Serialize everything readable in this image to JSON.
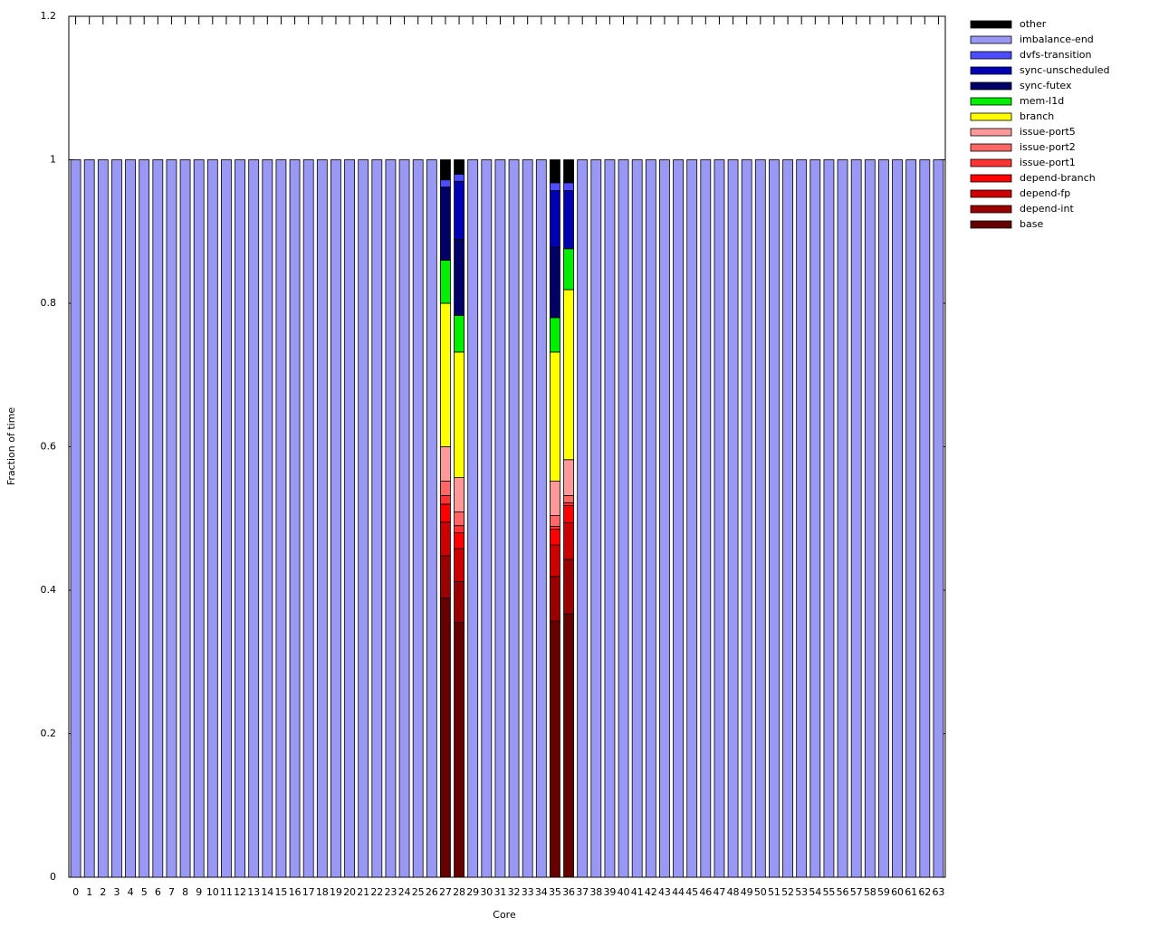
{
  "chart_data": {
    "type": "stacked-bar",
    "x_label": "Core",
    "y_label": "Fraction of time",
    "categories": [
      "0",
      "1",
      "2",
      "3",
      "4",
      "5",
      "6",
      "7",
      "8",
      "9",
      "10",
      "11",
      "12",
      "13",
      "14",
      "15",
      "16",
      "17",
      "18",
      "19",
      "20",
      "21",
      "22",
      "23",
      "24",
      "25",
      "26",
      "27",
      "28",
      "29",
      "30",
      "31",
      "32",
      "33",
      "34",
      "35",
      "36",
      "37",
      "38",
      "39",
      "40",
      "41",
      "42",
      "43",
      "44",
      "45",
      "46",
      "47",
      "48",
      "49",
      "50",
      "51",
      "52",
      "53",
      "54",
      "55",
      "56",
      "57",
      "58",
      "59",
      "60",
      "61",
      "62",
      "63"
    ],
    "ylim": [
      0,
      1.2
    ],
    "yticks": [
      0,
      0.2,
      0.4,
      0.6,
      0.8,
      1,
      1.2
    ],
    "legend": "outside-right",
    "series": [
      {
        "name": "base",
        "color": "#660000",
        "values": [
          0,
          0,
          0,
          0,
          0,
          0,
          0,
          0,
          0,
          0,
          0,
          0,
          0,
          0,
          0,
          0,
          0,
          0,
          0,
          0,
          0,
          0,
          0,
          0,
          0,
          0,
          0,
          0.389,
          0.355,
          0,
          0,
          0,
          0,
          0,
          0,
          0.357,
          0.367,
          0,
          0,
          0,
          0,
          0,
          0,
          0,
          0,
          0,
          0,
          0,
          0,
          0,
          0,
          0,
          0,
          0,
          0,
          0,
          0,
          0,
          0,
          0,
          0,
          0,
          0,
          0
        ]
      },
      {
        "name": "depend-int",
        "color": "#990000",
        "values": [
          0,
          0,
          0,
          0,
          0,
          0,
          0,
          0,
          0,
          0,
          0,
          0,
          0,
          0,
          0,
          0,
          0,
          0,
          0,
          0,
          0,
          0,
          0,
          0,
          0,
          0,
          0,
          0.059,
          0.057,
          0,
          0,
          0,
          0,
          0,
          0,
          0.062,
          0.076,
          0,
          0,
          0,
          0,
          0,
          0,
          0,
          0,
          0,
          0,
          0,
          0,
          0,
          0,
          0,
          0,
          0,
          0,
          0,
          0,
          0,
          0,
          0,
          0,
          0,
          0,
          0
        ]
      },
      {
        "name": "depend-fp",
        "color": "#cc0000",
        "values": [
          0,
          0,
          0,
          0,
          0,
          0,
          0,
          0,
          0,
          0,
          0,
          0,
          0,
          0,
          0,
          0,
          0,
          0,
          0,
          0,
          0,
          0,
          0,
          0,
          0,
          0,
          0,
          0.047,
          0.046,
          0,
          0,
          0,
          0,
          0,
          0,
          0.044,
          0.051,
          0,
          0,
          0,
          0,
          0,
          0,
          0,
          0,
          0,
          0,
          0,
          0,
          0,
          0,
          0,
          0,
          0,
          0,
          0,
          0,
          0,
          0,
          0,
          0,
          0,
          0,
          0
        ]
      },
      {
        "name": "depend-branch",
        "color": "#ff0000",
        "values": [
          0,
          0,
          0,
          0,
          0,
          0,
          0,
          0,
          0,
          0,
          0,
          0,
          0,
          0,
          0,
          0,
          0,
          0,
          0,
          0,
          0,
          0,
          0,
          0,
          0,
          0,
          0,
          0.025,
          0.022,
          0,
          0,
          0,
          0,
          0,
          0,
          0.022,
          0.024,
          0,
          0,
          0,
          0,
          0,
          0,
          0,
          0,
          0,
          0,
          0,
          0,
          0,
          0,
          0,
          0,
          0,
          0,
          0,
          0,
          0,
          0,
          0,
          0,
          0,
          0,
          0
        ]
      },
      {
        "name": "issue-port1",
        "color": "#ff3333",
        "values": [
          0,
          0,
          0,
          0,
          0,
          0,
          0,
          0,
          0,
          0,
          0,
          0,
          0,
          0,
          0,
          0,
          0,
          0,
          0,
          0,
          0,
          0,
          0,
          0,
          0,
          0,
          0,
          0.012,
          0.01,
          0,
          0,
          0,
          0,
          0,
          0,
          0.004,
          0.004,
          0,
          0,
          0,
          0,
          0,
          0,
          0,
          0,
          0,
          0,
          0,
          0,
          0,
          0,
          0,
          0,
          0,
          0,
          0,
          0,
          0,
          0,
          0,
          0,
          0,
          0,
          0
        ]
      },
      {
        "name": "issue-port2",
        "color": "#ff6666",
        "values": [
          0,
          0,
          0,
          0,
          0,
          0,
          0,
          0,
          0,
          0,
          0,
          0,
          0,
          0,
          0,
          0,
          0,
          0,
          0,
          0,
          0,
          0,
          0,
          0,
          0,
          0,
          0,
          0.02,
          0.019,
          0,
          0,
          0,
          0,
          0,
          0,
          0.015,
          0.01,
          0,
          0,
          0,
          0,
          0,
          0,
          0,
          0,
          0,
          0,
          0,
          0,
          0,
          0,
          0,
          0,
          0,
          0,
          0,
          0,
          0,
          0,
          0,
          0,
          0,
          0,
          0
        ]
      },
      {
        "name": "issue-port5",
        "color": "#ff9999",
        "values": [
          0,
          0,
          0,
          0,
          0,
          0,
          0,
          0,
          0,
          0,
          0,
          0,
          0,
          0,
          0,
          0,
          0,
          0,
          0,
          0,
          0,
          0,
          0,
          0,
          0,
          0,
          0,
          0.048,
          0.048,
          0,
          0,
          0,
          0,
          0,
          0,
          0.048,
          0.05,
          0,
          0,
          0,
          0,
          0,
          0,
          0,
          0,
          0,
          0,
          0,
          0,
          0,
          0,
          0,
          0,
          0,
          0,
          0,
          0,
          0,
          0,
          0,
          0,
          0,
          0,
          0
        ]
      },
      {
        "name": "branch",
        "color": "#ffff00",
        "values": [
          0,
          0,
          0,
          0,
          0,
          0,
          0,
          0,
          0,
          0,
          0,
          0,
          0,
          0,
          0,
          0,
          0,
          0,
          0,
          0,
          0,
          0,
          0,
          0,
          0,
          0,
          0,
          0.2,
          0.175,
          0,
          0,
          0,
          0,
          0,
          0,
          0.18,
          0.237,
          0,
          0,
          0,
          0,
          0,
          0,
          0,
          0,
          0,
          0,
          0,
          0,
          0,
          0,
          0,
          0,
          0,
          0,
          0,
          0,
          0,
          0,
          0,
          0,
          0,
          0,
          0
        ]
      },
      {
        "name": "mem-l1d",
        "color": "#00ee00",
        "values": [
          0,
          0,
          0,
          0,
          0,
          0,
          0,
          0,
          0,
          0,
          0,
          0,
          0,
          0,
          0,
          0,
          0,
          0,
          0,
          0,
          0,
          0,
          0,
          0,
          0,
          0,
          0,
          0.06,
          0.051,
          0,
          0,
          0,
          0,
          0,
          0,
          0.048,
          0.057,
          0,
          0,
          0,
          0,
          0,
          0,
          0,
          0,
          0,
          0,
          0,
          0,
          0,
          0,
          0,
          0,
          0,
          0,
          0,
          0,
          0,
          0,
          0,
          0,
          0,
          0,
          0
        ]
      },
      {
        "name": "sync-futex",
        "color": "#000066",
        "values": [
          0,
          0,
          0,
          0,
          0,
          0,
          0,
          0,
          0,
          0,
          0,
          0,
          0,
          0,
          0,
          0,
          0,
          0,
          0,
          0,
          0,
          0,
          0,
          0,
          0,
          0,
          0,
          0.102,
          0.106,
          0,
          0,
          0,
          0,
          0,
          0,
          0.098,
          0,
          0,
          0,
          0,
          0,
          0,
          0,
          0,
          0,
          0,
          0,
          0,
          0,
          0,
          0,
          0,
          0,
          0,
          0,
          0,
          0,
          0,
          0,
          0,
          0,
          0,
          0,
          0
        ]
      },
      {
        "name": "sync-unscheduled",
        "color": "#0000b3",
        "values": [
          0,
          0,
          0,
          0,
          0,
          0,
          0,
          0,
          0,
          0,
          0,
          0,
          0,
          0,
          0,
          0,
          0,
          0,
          0,
          0,
          0,
          0,
          0,
          0,
          0,
          0,
          0,
          0,
          0.081,
          0,
          0,
          0,
          0,
          0,
          0,
          0.079,
          0.081,
          0,
          0,
          0,
          0,
          0,
          0,
          0,
          0,
          0,
          0,
          0,
          0,
          0,
          0,
          0,
          0,
          0,
          0,
          0,
          0,
          0,
          0,
          0,
          0,
          0,
          0,
          0
        ]
      },
      {
        "name": "dvfs-transition",
        "color": "#4d4dff",
        "values": [
          0,
          0,
          0,
          0,
          0,
          0,
          0,
          0,
          0,
          0,
          0,
          0,
          0,
          0,
          0,
          0,
          0,
          0,
          0,
          0,
          0,
          0,
          0,
          0,
          0,
          0,
          0,
          0.01,
          0.01,
          0,
          0,
          0,
          0,
          0,
          0,
          0.011,
          0.011,
          0,
          0,
          0,
          0,
          0,
          0,
          0,
          0,
          0,
          0,
          0,
          0,
          0,
          0,
          0,
          0,
          0,
          0,
          0,
          0,
          0,
          0,
          0,
          0,
          0,
          0,
          0
        ]
      },
      {
        "name": "imbalance-end",
        "color": "#9999f5",
        "values": [
          1,
          1,
          1,
          1,
          1,
          1,
          1,
          1,
          1,
          1,
          1,
          1,
          1,
          1,
          1,
          1,
          1,
          1,
          1,
          1,
          1,
          1,
          1,
          1,
          1,
          1,
          1,
          0,
          0,
          1,
          1,
          1,
          1,
          1,
          1,
          0,
          0,
          1,
          1,
          1,
          1,
          1,
          1,
          1,
          1,
          1,
          1,
          1,
          1,
          1,
          1,
          1,
          1,
          1,
          1,
          1,
          1,
          1,
          1,
          1,
          1,
          1,
          1,
          1
        ]
      },
      {
        "name": "other",
        "color": "#000000",
        "values": [
          0,
          0,
          0,
          0,
          0,
          0,
          0,
          0,
          0,
          0,
          0,
          0,
          0,
          0,
          0,
          0,
          0,
          0,
          0,
          0,
          0,
          0,
          0,
          0,
          0,
          0,
          0,
          0.028,
          0.02,
          0,
          0,
          0,
          0,
          0,
          0,
          0.032,
          0.032,
          0,
          0,
          0,
          0,
          0,
          0,
          0,
          0,
          0,
          0,
          0,
          0,
          0,
          0,
          0,
          0,
          0,
          0,
          0,
          0,
          0,
          0,
          0,
          0,
          0,
          0,
          0
        ]
      }
    ]
  }
}
